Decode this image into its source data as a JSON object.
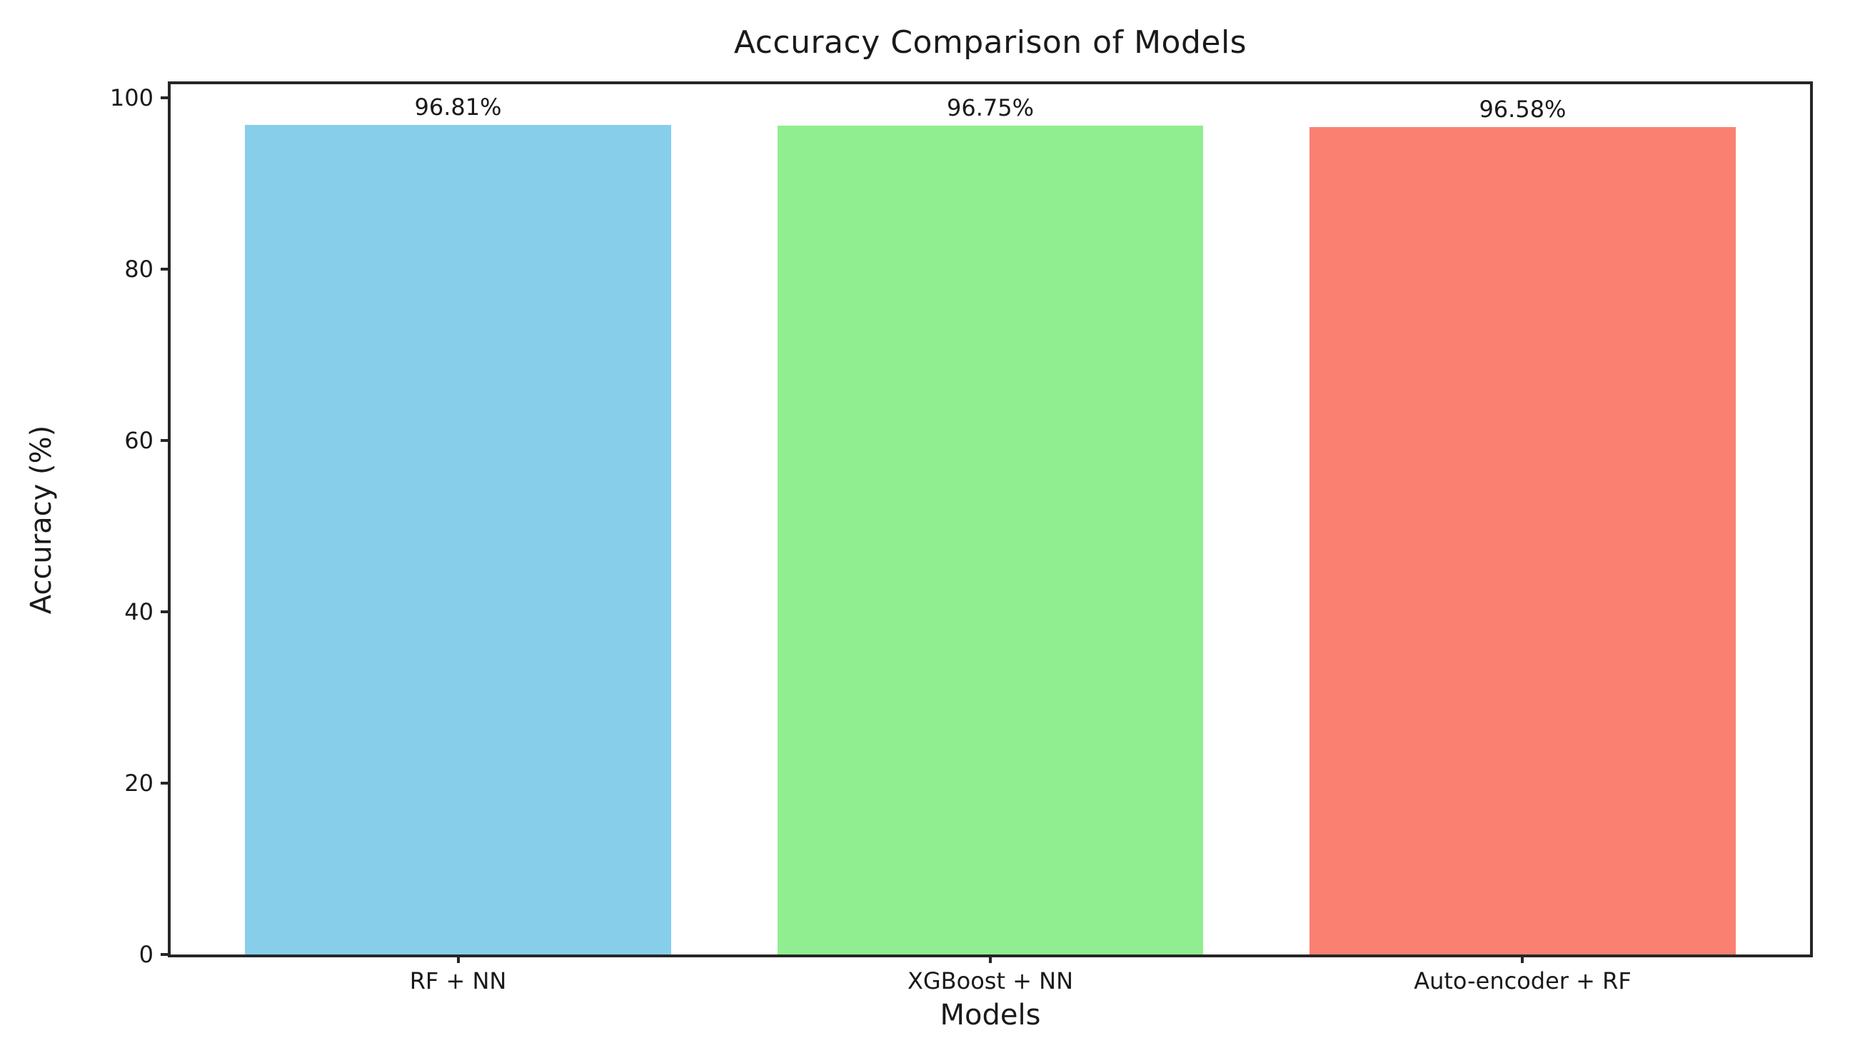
{
  "figure": {
    "background": "#ffffff"
  },
  "chart_data": {
    "type": "bar",
    "title": "Accuracy Comparison of Models",
    "xlabel": "Models",
    "ylabel": "Accuracy (%)",
    "categories": [
      "RF + NN",
      "XGBoost + NN",
      "Auto-encoder + RF"
    ],
    "values": [
      96.81,
      96.75,
      96.58
    ],
    "value_labels": [
      "96.81%",
      "96.75%",
      "96.58%"
    ],
    "series": [
      {
        "name": "Accuracy",
        "values": [
          96.81,
          96.75,
          96.58
        ]
      }
    ],
    "bar_colors": [
      "#87CEEB",
      "#90EE90",
      "#FA8072"
    ],
    "yticks": [
      0,
      20,
      40,
      60,
      80,
      100
    ],
    "ytick_labels": [
      "0",
      "20",
      "40",
      "60",
      "80",
      "100"
    ],
    "ylim": [
      0,
      101.6
    ],
    "xlim": [
      -0.54,
      2.54
    ],
    "bar_width": 0.8,
    "grid": false,
    "legend": "none",
    "spine_color": "#262626",
    "text_color": "#1a1a1a",
    "plot_background": "#ffffff"
  }
}
